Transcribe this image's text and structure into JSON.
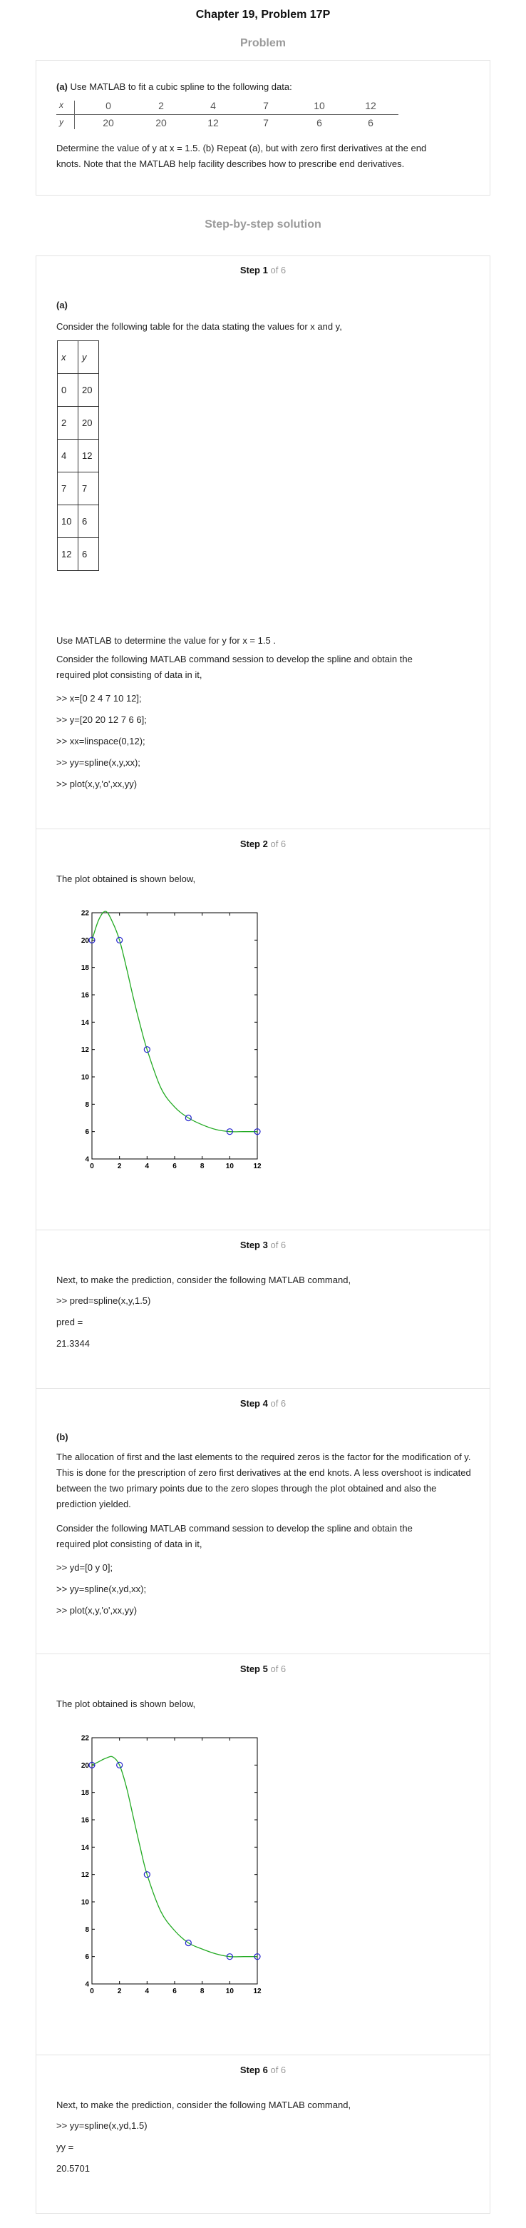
{
  "page": {
    "title": "Chapter 19, Problem 17P",
    "problem_heading": "Problem",
    "solution_heading": "Step-by-step solution"
  },
  "problem": {
    "intro_bold": "(a)",
    "intro": "Use MATLAB to fit a cubic spline to the following data:",
    "table": {
      "x_label": "x",
      "y_label": "y",
      "x": [
        "0",
        "2",
        "4",
        "7",
        "10",
        "12"
      ],
      "y": [
        "20",
        "20",
        "12",
        "7",
        "6",
        "6"
      ]
    },
    "question_line1": "Determine the value of y at x = 1.5. (b) Repeat (a), but with zero first derivatives at the end",
    "question_line2": "knots. Note that the MATLAB help facility describes how to prescribe end derivatives."
  },
  "steps": [
    {
      "label": "Step 1",
      "of": "of 6",
      "part": "(a)",
      "text1": "Consider the following table for the data stating the values for x and y,",
      "table_header": [
        "x",
        "y"
      ],
      "table_rows": [
        [
          "0",
          "20"
        ],
        [
          "2",
          "20"
        ],
        [
          "4",
          "12"
        ],
        [
          "7",
          "7"
        ],
        [
          "10",
          "6"
        ],
        [
          "12",
          "6"
        ]
      ],
      "text2": "Use MATLAB to determine the value for y for x = 1.5 .",
      "text3a": "Consider the following MATLAB command session to develop the spline and obtain the",
      "text3b": "required plot consisting of data in it,",
      "code": [
        ">> x=[0 2 4 7 10 12];",
        ">> y=[20 20 12 7 6 6];",
        ">> xx=linspace(0,12);",
        ">> yy=spline(x,y,xx);",
        ">> plot(x,y,'o',xx,yy)"
      ]
    },
    {
      "label": "Step 2",
      "of": "of 6",
      "text": "The plot obtained is shown below,"
    },
    {
      "label": "Step 3",
      "of": "of 6",
      "text": "Next, to make the prediction, consider the following MATLAB command,",
      "code": [
        ">> pred=spline(x,y,1.5)",
        "pred =",
        "21.3344"
      ]
    },
    {
      "label": "Step 4",
      "of": "of 6",
      "part": "(b)",
      "para1": "The allocation of first and the last elements to the required zeros is the factor for the modification of y. This is done for the prescription of zero first derivatives at the end knots. A less overshoot is indicated between the two primary points due to the zero slopes through the plot obtained and also the prediction yielded.",
      "para2a": "Consider the following MATLAB command session to develop the spline and obtain the",
      "para2b": "required plot consisting of data in it,",
      "code": [
        ">> yd=[0 y 0];",
        ">> yy=spline(x,yd,xx);",
        ">> plot(x,y,'o',xx,yy)"
      ]
    },
    {
      "label": "Step 5",
      "of": "of 6",
      "text": "The plot obtained is shown below,"
    },
    {
      "label": "Step 6",
      "of": "of 6",
      "text": "Next, to make the prediction, consider the following MATLAB command,",
      "code": [
        ">> yy=spline(x,yd,1.5)",
        "yy =",
        "20.5701"
      ]
    }
  ],
  "chart_data": [
    {
      "type": "line",
      "title": "",
      "xlabel": "",
      "ylabel": "",
      "xlim": [
        0,
        12
      ],
      "ylim": [
        4,
        22
      ],
      "xticks": [
        0,
        2,
        4,
        6,
        8,
        10,
        12
      ],
      "yticks": [
        4,
        6,
        8,
        10,
        12,
        14,
        16,
        18,
        20,
        22
      ],
      "grid": false,
      "markers": {
        "x": [
          0,
          2,
          4,
          7,
          10,
          12
        ],
        "y": [
          20,
          20,
          12,
          7,
          6,
          6
        ],
        "style": "o",
        "color": "#2222cc"
      },
      "curve": {
        "x": [
          0,
          0.5,
          1,
          1.5,
          2,
          2.5,
          3,
          3.5,
          4,
          5,
          6,
          7,
          8,
          9,
          10,
          11,
          12
        ],
        "y": [
          20,
          21.5,
          22.1,
          21.3,
          20,
          18.0,
          15.8,
          13.8,
          12,
          9.2,
          7.8,
          7,
          6.5,
          6.15,
          6,
          6,
          6
        ],
        "color": "#22aa22"
      }
    },
    {
      "type": "line",
      "title": "",
      "xlabel": "",
      "ylabel": "",
      "xlim": [
        0,
        12
      ],
      "ylim": [
        4,
        22
      ],
      "xticks": [
        0,
        2,
        4,
        6,
        8,
        10,
        12
      ],
      "yticks": [
        4,
        6,
        8,
        10,
        12,
        14,
        16,
        18,
        20,
        22
      ],
      "grid": false,
      "markers": {
        "x": [
          0,
          2,
          4,
          7,
          10,
          12
        ],
        "y": [
          20,
          20,
          12,
          7,
          6,
          6
        ],
        "style": "o",
        "color": "#2222cc"
      },
      "curve": {
        "x": [
          0,
          0.5,
          1,
          1.5,
          2,
          2.5,
          3,
          3.5,
          4,
          5,
          6,
          7,
          8,
          9,
          10,
          11,
          12
        ],
        "y": [
          20,
          20.25,
          20.5,
          20.6,
          20,
          18.4,
          16.2,
          14.0,
          12,
          9.3,
          7.9,
          7,
          6.55,
          6.2,
          6,
          6,
          6
        ],
        "color": "#22aa22"
      }
    }
  ]
}
